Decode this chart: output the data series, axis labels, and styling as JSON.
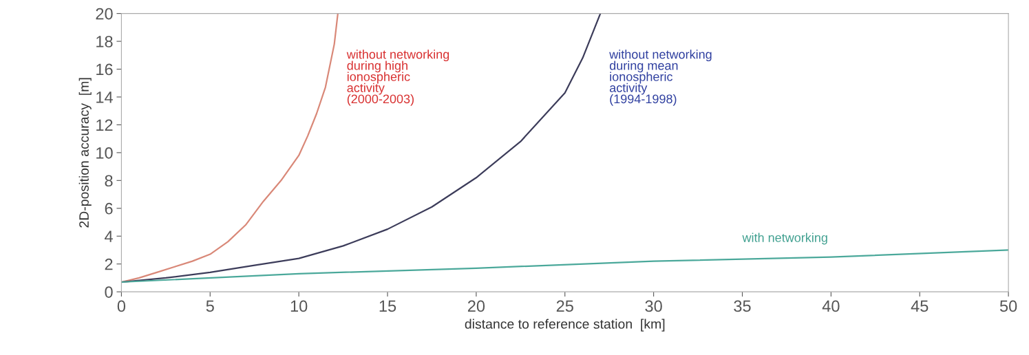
{
  "chart_data": {
    "type": "line",
    "xlabel": "distance to reference station  [km]",
    "ylabel": "2D-position accuracy  [m]",
    "xlim": [
      0,
      50
    ],
    "ylim": [
      0,
      20
    ],
    "xticks": [
      0,
      5,
      10,
      15,
      20,
      25,
      30,
      35,
      40,
      45,
      50
    ],
    "yticks": [
      0,
      2,
      4,
      6,
      8,
      10,
      12,
      14,
      16,
      18,
      20
    ],
    "grid": false,
    "legend": false,
    "marker": "none",
    "line_style": "solid",
    "series": [
      {
        "name": "without networking\nduring high\nionospheric\nactivity\n(2000-2003)",
        "color": "#d98878",
        "x": [
          0,
          1,
          2,
          3,
          4,
          5,
          6,
          7,
          8,
          9,
          10,
          10.5,
          11,
          11.5,
          12,
          12.2
        ],
        "values": [
          0.7,
          1.0,
          1.4,
          1.8,
          2.2,
          2.7,
          3.6,
          4.8,
          6.5,
          8.0,
          9.8,
          11.2,
          12.8,
          14.7,
          17.8,
          20
        ]
      },
      {
        "name": "without networking\nduring mean\nionospheric\nactivity\n(1994-1998)",
        "color": "#3c3c5a",
        "x": [
          0,
          2.5,
          5,
          7.5,
          10,
          12.5,
          15,
          17.5,
          20,
          22.5,
          25,
          26,
          27
        ],
        "values": [
          0.7,
          1.0,
          1.4,
          1.9,
          2.4,
          3.3,
          4.5,
          6.1,
          8.2,
          10.8,
          14.3,
          16.8,
          20
        ]
      },
      {
        "name": "with networking",
        "color": "#4aa89a",
        "x": [
          0,
          10,
          20,
          30,
          40,
          50
        ],
        "values": [
          0.7,
          1.3,
          1.7,
          2.2,
          2.5,
          3.0
        ]
      }
    ]
  }
}
